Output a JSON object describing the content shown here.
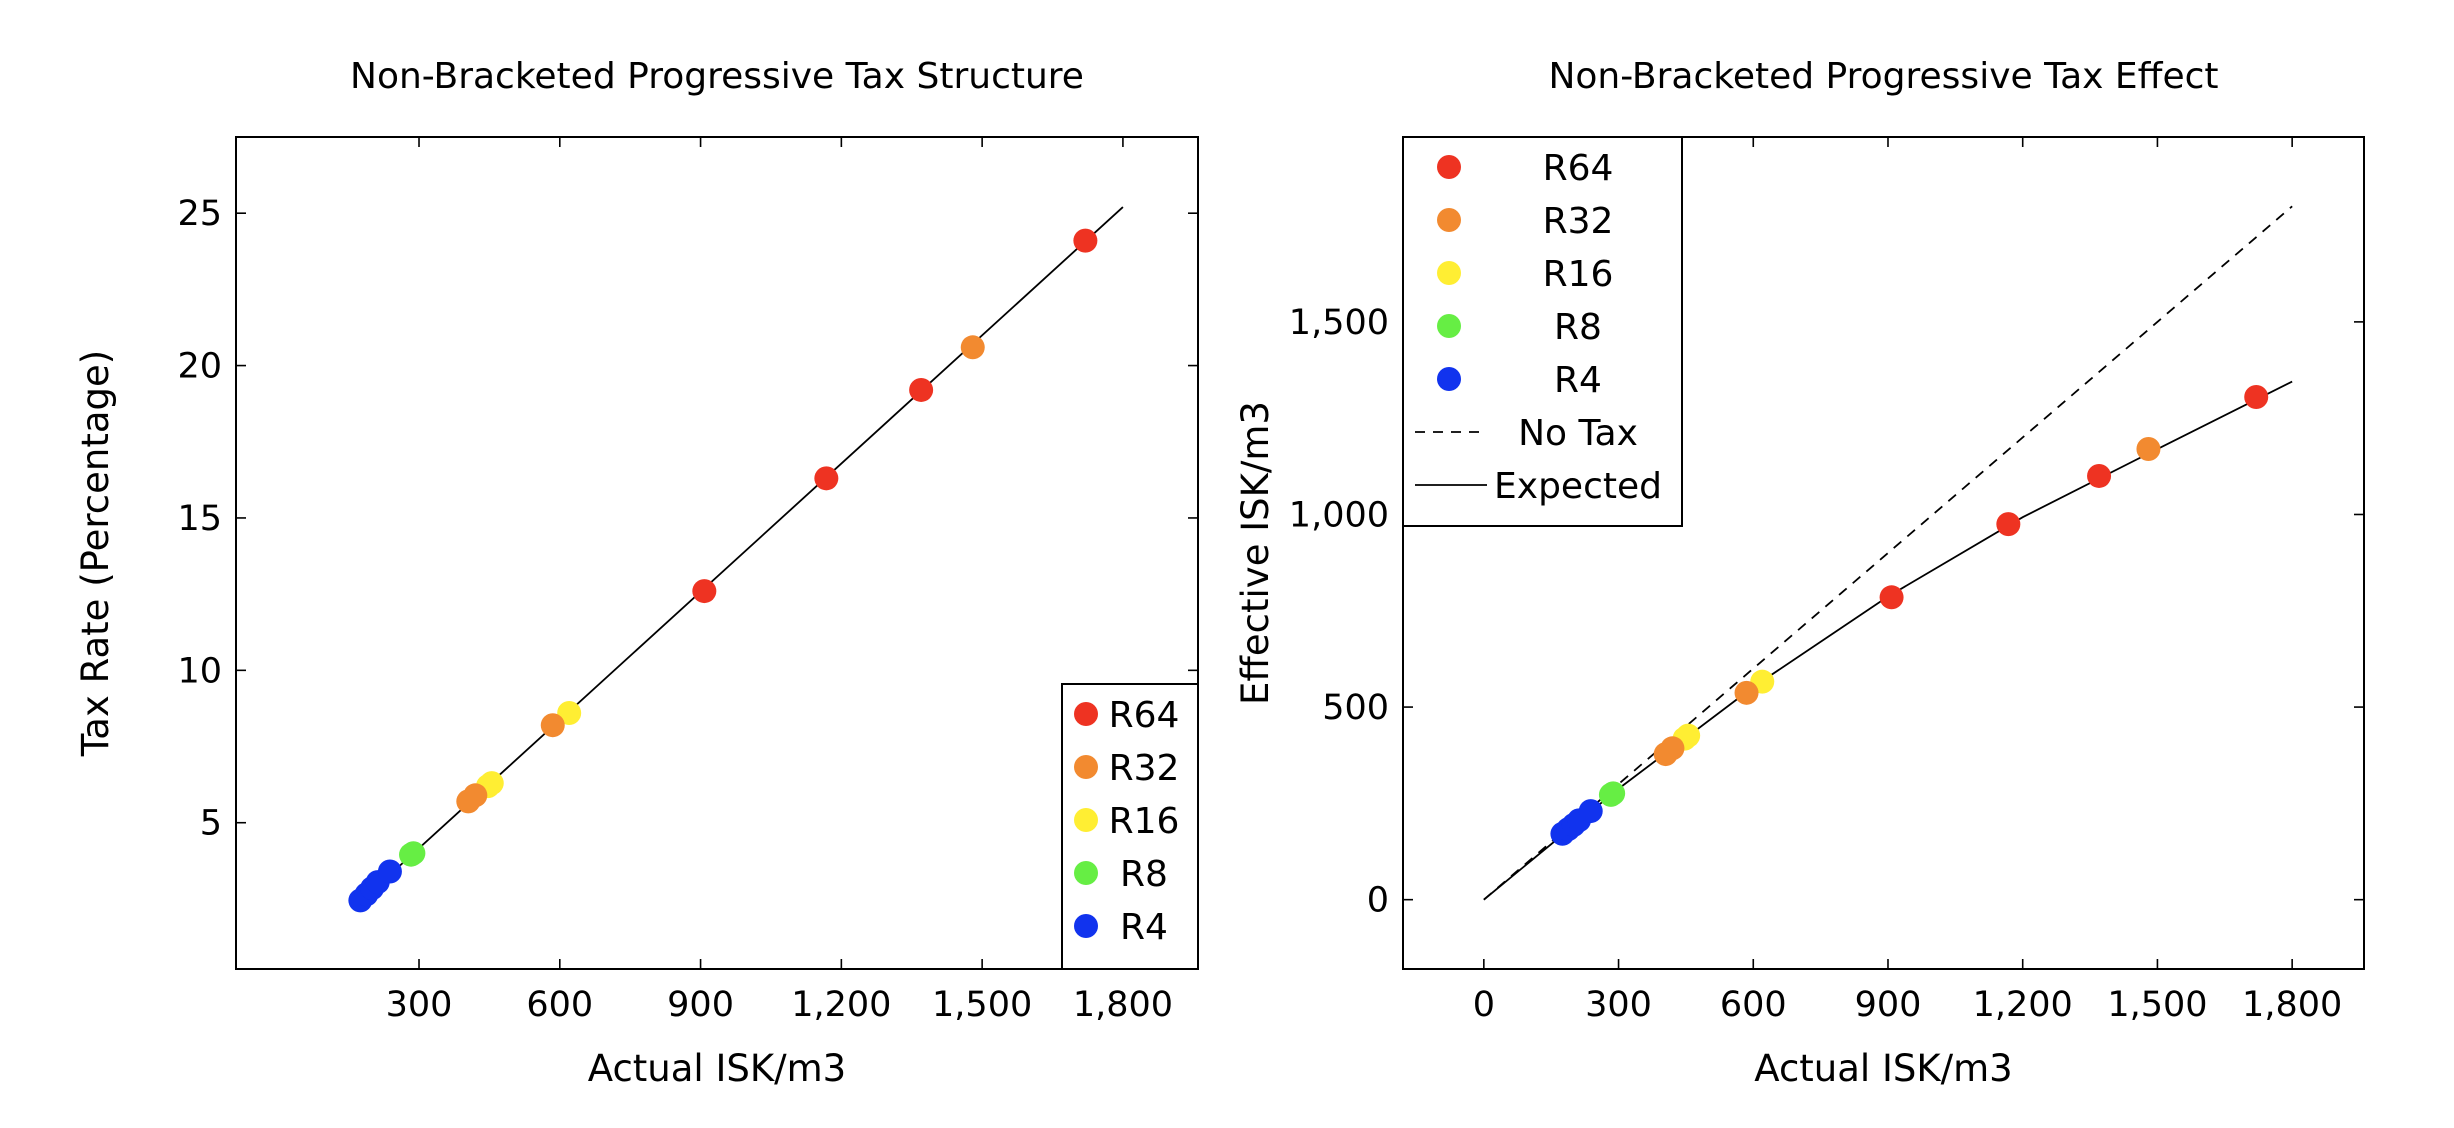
{
  "chart_data": [
    {
      "type": "scatter",
      "title": "Non-Bracketed Progressive Tax Structure",
      "xlabel": "Actual ISK/m3",
      "ylabel": "Tax Rate (Percentage)",
      "xlim": [
        -90,
        1960
      ],
      "ylim": [
        0.2,
        27.5
      ],
      "xticks": [
        300,
        600,
        900,
        1200,
        1500,
        1800
      ],
      "xtick_labels": [
        "300",
        "600",
        "900",
        "1,200",
        "1,500",
        "1,800"
      ],
      "yticks": [
        5,
        10,
        15,
        20,
        25
      ],
      "ytick_labels": [
        "5",
        "10",
        "15",
        "20",
        "25"
      ],
      "legend_position": "bottom-right",
      "grid": false,
      "series": [
        {
          "name": "R64",
          "color": "#ee3322",
          "points": [
            [
              908,
              12.6
            ],
            [
              1168,
              16.3
            ],
            [
              1370,
              19.2
            ],
            [
              1720,
              24.1
            ]
          ]
        },
        {
          "name": "R32",
          "color": "#f28a30",
          "points": [
            [
              405,
              5.7
            ],
            [
              420,
              5.9
            ],
            [
              585,
              8.2
            ],
            [
              1480,
              20.6
            ]
          ]
        },
        {
          "name": "R16",
          "color": "#ffee33",
          "points": [
            [
              447,
              6.2
            ],
            [
              455,
              6.3
            ],
            [
              620,
              8.6
            ]
          ]
        },
        {
          "name": "R8",
          "color": "#66ee44",
          "points": [
            [
              283,
              3.95
            ],
            [
              288,
              4.0
            ]
          ]
        },
        {
          "name": "R4",
          "color": "#1133ee",
          "points": [
            [
              175,
              2.45
            ],
            [
              188,
              2.65
            ],
            [
              200,
              2.85
            ],
            [
              212,
              3.05
            ],
            [
              238,
              3.4
            ]
          ]
        }
      ],
      "lines": [
        {
          "name": "Expected",
          "style": "solid",
          "points": [
            [
              160,
              2.2
            ],
            [
              1800,
              25.2
            ]
          ]
        }
      ]
    },
    {
      "type": "scatter",
      "title": "Non-Bracketed Progressive Tax Effect",
      "xlabel": "Actual ISK/m3",
      "ylabel": "Effective ISK/m3",
      "xlim": [
        -180,
        1960
      ],
      "ylim": [
        -180,
        1980
      ],
      "xticks": [
        0,
        300,
        600,
        900,
        1200,
        1500,
        1800
      ],
      "xtick_labels": [
        "0",
        "300",
        "600",
        "900",
        "1,200",
        "1,500",
        "1,800"
      ],
      "yticks": [
        0,
        500,
        1000,
        1500
      ],
      "ytick_labels": [
        "0",
        "500",
        "1,000",
        "1,500"
      ],
      "legend_position": "top-left",
      "grid": false,
      "series": [
        {
          "name": "R64",
          "color": "#ee3322",
          "points": [
            [
              908,
              785
            ],
            [
              1168,
              975
            ],
            [
              1370,
              1100
            ],
            [
              1720,
              1305
            ]
          ]
        },
        {
          "name": "R32",
          "color": "#f28a30",
          "points": [
            [
              405,
              378
            ],
            [
              420,
              393
            ],
            [
              585,
              537
            ],
            [
              1480,
              1170
            ]
          ]
        },
        {
          "name": "R16",
          "color": "#ffee33",
          "points": [
            [
              447,
              418
            ],
            [
              455,
              426
            ],
            [
              620,
              566
            ]
          ]
        },
        {
          "name": "R8",
          "color": "#66ee44",
          "points": [
            [
              283,
              272
            ],
            [
              288,
              276
            ]
          ]
        },
        {
          "name": "R4",
          "color": "#1133ee",
          "points": [
            [
              175,
              171
            ],
            [
              188,
              183
            ],
            [
              200,
              194
            ],
            [
              212,
              206
            ],
            [
              238,
              230
            ]
          ]
        }
      ],
      "lines": [
        {
          "name": "No Tax",
          "style": "dashed",
          "points": [
            [
              0,
              0
            ],
            [
              1800,
              1800
            ]
          ]
        },
        {
          "name": "Expected",
          "style": "solid",
          "points": [
            [
              0,
              0
            ],
            [
              300,
              288
            ],
            [
              600,
              552
            ],
            [
              900,
              787
            ],
            [
              1200,
              993
            ],
            [
              1500,
              1170
            ],
            [
              1800,
              1345
            ]
          ]
        }
      ]
    }
  ]
}
